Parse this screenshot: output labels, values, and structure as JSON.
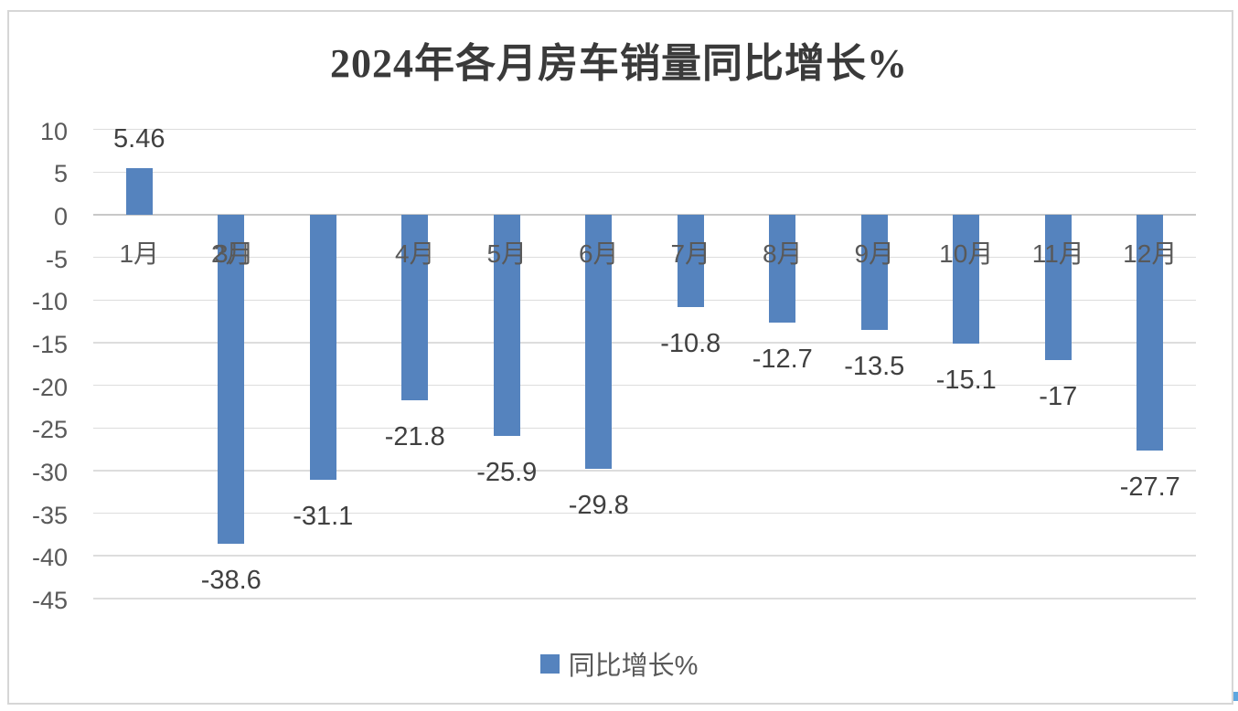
{
  "chart_data": {
    "type": "bar",
    "title": "2024年各月房车销量同比增长%",
    "categories": [
      "1月",
      "2月",
      "3月",
      "4月",
      "5月",
      "6月",
      "7月",
      "8月",
      "9月",
      "10月",
      "11月",
      "12月"
    ],
    "series": [
      {
        "name": "同比增长%",
        "values": [
          5.46,
          -38.6,
          -31.1,
          -21.8,
          -25.9,
          -29.8,
          -10.8,
          -12.7,
          -13.5,
          -15.1,
          -17,
          -27.7
        ]
      }
    ],
    "point_labels": [
      "5.46",
      "-38.6",
      "-31.1",
      "-21.8",
      "-25.9",
      "-29.8",
      "-10.8",
      "-12.7",
      "-13.5",
      "-15.1",
      "-17",
      "-27.7"
    ],
    "y_ticks": [
      10,
      5,
      0,
      -5,
      -10,
      -15,
      -20,
      -25,
      -30,
      -35,
      -40,
      -45
    ],
    "ylim": [
      -45,
      10
    ],
    "grid": true,
    "legend_position": "bottom",
    "colors": {
      "bar": "#5583BE",
      "gridline": "#DDDDDD",
      "zero_line": "#C8C8C8",
      "axis_text": "#595959",
      "data_label_text": "#404040",
      "title_text": "#3A3A3A",
      "frame_border": "#D6D6D6",
      "corner_artifact": "#5EA7E0"
    },
    "annotations": {
      "label_overlap_note": "The 3月 category label is drawn on top of the 2月 label position; no label appears under the 3月 bar."
    }
  },
  "legend": {
    "label": "同比增长%"
  }
}
